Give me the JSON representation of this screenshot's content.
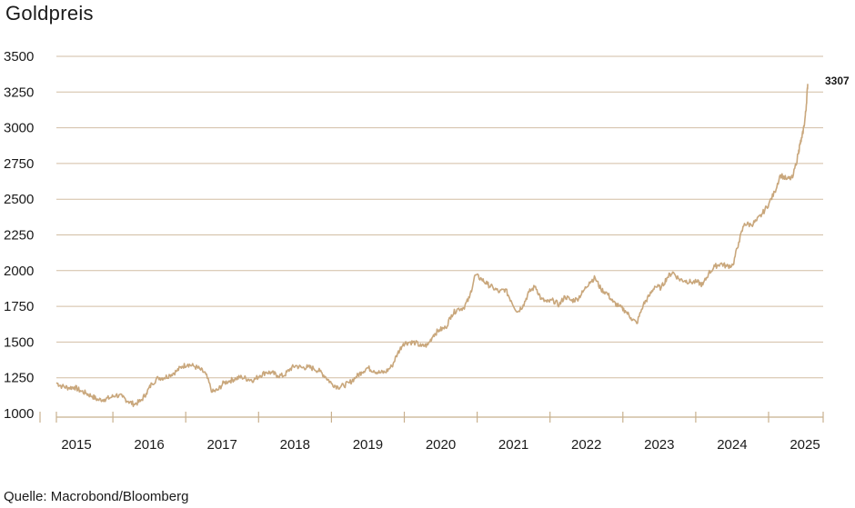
{
  "chart_data": {
    "type": "line",
    "title": "Goldpreis",
    "source": "Quelle: Macrobond/Bloomberg",
    "xlabel": "",
    "ylabel": "",
    "ylim": [
      1000,
      3500
    ],
    "xlim": [
      2014.75,
      2025.25
    ],
    "grid": true,
    "line_color": "#c9a77c",
    "y_ticks": [
      {
        "value": 1000,
        "label": "1000"
      },
      {
        "value": 1250,
        "label": "1250"
      },
      {
        "value": 1500,
        "label": "1500"
      },
      {
        "value": 1750,
        "label": "1750"
      },
      {
        "value": 2000,
        "label": "2000"
      },
      {
        "value": 2250,
        "label": "2250"
      },
      {
        "value": 2500,
        "label": "2500"
      },
      {
        "value": 2750,
        "label": "2750"
      },
      {
        "value": 3000,
        "label": "3000"
      },
      {
        "value": 3250,
        "label": "3250"
      },
      {
        "value": 3500,
        "label": "3500"
      }
    ],
    "x_ticks": [
      {
        "value": 2015,
        "label": "2015"
      },
      {
        "value": 2016,
        "label": "2016"
      },
      {
        "value": 2017,
        "label": "2017"
      },
      {
        "value": 2018,
        "label": "2018"
      },
      {
        "value": 2019,
        "label": "2019"
      },
      {
        "value": 2020,
        "label": "2020"
      },
      {
        "value": 2021,
        "label": "2021"
      },
      {
        "value": 2022,
        "label": "2022"
      },
      {
        "value": 2023,
        "label": "2023"
      },
      {
        "value": 2024,
        "label": "2024"
      },
      {
        "value": 2025,
        "label": "2025"
      }
    ],
    "series": [
      {
        "x": [
          2014.75,
          2014.83,
          2014.92,
          2015.0,
          2015.08,
          2015.17,
          2015.25,
          2015.33,
          2015.42,
          2015.5,
          2015.58,
          2015.67,
          2015.75,
          2015.83,
          2015.92,
          2016.0,
          2016.08,
          2016.17,
          2016.25,
          2016.33,
          2016.42,
          2016.5,
          2016.58,
          2016.67,
          2016.75,
          2016.83,
          2016.92,
          2017.0,
          2017.08,
          2017.17,
          2017.25,
          2017.33,
          2017.42,
          2017.5,
          2017.58,
          2017.67,
          2017.75,
          2017.83,
          2017.92,
          2018.0,
          2018.08,
          2018.17,
          2018.25,
          2018.33,
          2018.42,
          2018.5,
          2018.58,
          2018.67,
          2018.75,
          2018.83,
          2018.92,
          2019.0,
          2019.08,
          2019.17,
          2019.25,
          2019.33,
          2019.42,
          2019.5,
          2019.58,
          2019.67,
          2019.75,
          2019.83,
          2019.92,
          2020.0,
          2020.08,
          2020.17,
          2020.25,
          2020.33,
          2020.42,
          2020.5,
          2020.58,
          2020.67,
          2020.75,
          2020.83,
          2020.92,
          2021.0,
          2021.08,
          2021.17,
          2021.25,
          2021.33,
          2021.42,
          2021.5,
          2021.58,
          2021.67,
          2021.75,
          2021.83,
          2021.92,
          2022.0,
          2022.08,
          2022.17,
          2022.25,
          2022.33,
          2022.42,
          2022.5,
          2022.58,
          2022.67,
          2022.75,
          2022.83,
          2022.92,
          2023.0,
          2023.08,
          2023.17,
          2023.25,
          2023.33,
          2023.42,
          2023.5,
          2023.58,
          2023.67,
          2023.75,
          2023.83,
          2023.92,
          2024.0,
          2024.08,
          2024.17,
          2024.25,
          2024.33,
          2024.42,
          2024.5,
          2024.58,
          2024.67,
          2024.75,
          2024.83,
          2024.92,
          2025.0,
          2025.08,
          2025.1,
          2025.13,
          2025.17,
          2025.19,
          2025.21
        ],
        "values": [
          1215,
          1190,
          1180,
          1185,
          1160,
          1140,
          1120,
          1095,
          1100,
          1110,
          1130,
          1115,
          1085,
          1065,
          1085,
          1140,
          1210,
          1250,
          1250,
          1270,
          1295,
          1330,
          1345,
          1330,
          1310,
          1275,
          1150,
          1165,
          1215,
          1230,
          1245,
          1255,
          1240,
          1235,
          1265,
          1290,
          1285,
          1265,
          1265,
          1310,
          1335,
          1320,
          1325,
          1315,
          1295,
          1255,
          1210,
          1185,
          1195,
          1215,
          1255,
          1290,
          1320,
          1300,
          1285,
          1290,
          1330,
          1420,
          1490,
          1500,
          1495,
          1470,
          1480,
          1550,
          1585,
          1600,
          1690,
          1730,
          1740,
          1810,
          1970,
          1940,
          1905,
          1880,
          1850,
          1870,
          1790,
          1710,
          1760,
          1850,
          1890,
          1800,
          1780,
          1790,
          1760,
          1820,
          1790,
          1800,
          1850,
          1920,
          1950,
          1870,
          1840,
          1780,
          1750,
          1720,
          1670,
          1630,
          1760,
          1820,
          1890,
          1880,
          1950,
          1990,
          1940,
          1930,
          1920,
          1920,
          1900,
          1980,
          2030,
          2050,
          2030,
          2040,
          2200,
          2330,
          2320,
          2350,
          2400,
          2470,
          2550,
          2670,
          2640,
          2650,
          2820,
          2880,
          2930,
          3050,
          3150,
          3307
        ]
      }
    ],
    "annotations": [
      {
        "x": 2025.21,
        "y": 3307,
        "label": "3307"
      }
    ]
  }
}
